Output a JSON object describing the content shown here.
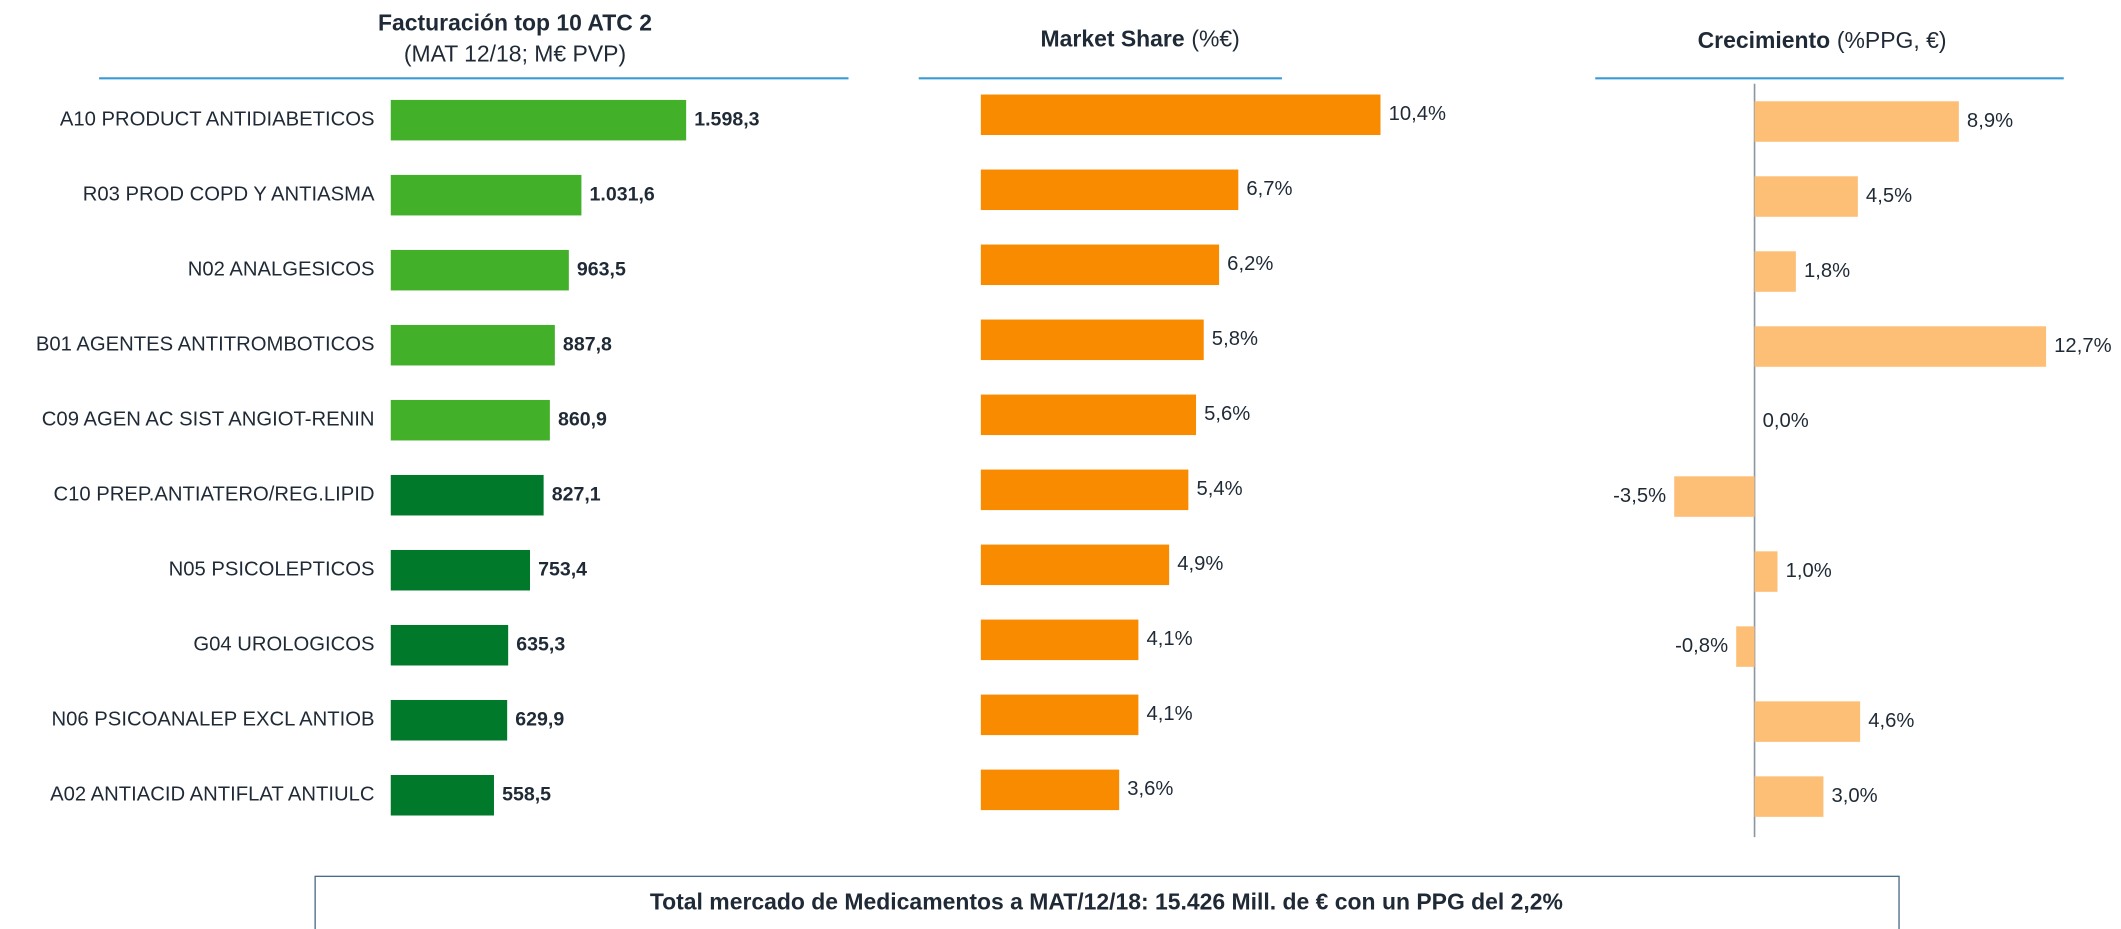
{
  "chart_data": [
    {
      "type": "bar",
      "title": "Facturación top 10 ATC 2",
      "subtitle": "(MAT 12/18; M€ PVP)",
      "categories": [
        "A10 PRODUCT ANTIDIABETICOS",
        "R03 PROD COPD Y ANTIASMA",
        "N02 ANALGESICOS",
        "B01 AGENTES ANTITROMBOTICOS",
        "C09 AGEN AC SIST ANGIOT-RENIN",
        "C10 PREP.ANTIATERO/REG.LIPID",
        "N05 PSICOLEPTICOS",
        "G04 UROLOGICOS",
        "N06 PSICOANALEP EXCL ANTIOB",
        "A02 ANTIACID ANTIFLAT ANTIULC"
      ],
      "values": [
        1598.3,
        1031.6,
        963.5,
        887.8,
        860.9,
        827.1,
        753.4,
        635.3,
        629.9,
        558.5
      ],
      "value_labels": [
        "1.598,3",
        "1.031,6",
        "963,5",
        "887,8",
        "860,9",
        "827,1",
        "753,4",
        "635,3",
        "629,9",
        "558,5"
      ],
      "colors": [
        "#43b02a",
        "#43b02a",
        "#43b02a",
        "#43b02a",
        "#43b02a",
        "#00792a",
        "#00792a",
        "#00792a",
        "#00792a",
        "#00792a"
      ]
    },
    {
      "type": "bar",
      "title": "Market Share",
      "subtitle": "(%€)",
      "values": [
        10.4,
        6.7,
        6.2,
        5.8,
        5.6,
        5.4,
        4.9,
        4.1,
        4.1,
        3.6
      ],
      "value_labels": [
        "10,4%",
        "6,7%",
        "6,2%",
        "5,8%",
        "5,6%",
        "5,4%",
        "4,9%",
        "4,1%",
        "4,1%",
        "3,6%"
      ],
      "color": "#f98b00"
    },
    {
      "type": "bar",
      "title": "Crecimiento",
      "subtitle": "(%PPG, €)",
      "values": [
        8.9,
        4.5,
        1.8,
        12.7,
        0.0,
        -3.5,
        1.0,
        -0.8,
        4.6,
        3.0
      ],
      "value_labels": [
        "8,9%",
        "4,5%",
        "1,8%",
        "12,7%",
        "0,0%",
        "-3,5%",
        "1,0%",
        "-0,8%",
        "4,6%",
        "3,0%"
      ],
      "color": "#fdbf76"
    }
  ],
  "footer": "Total mercado de Medicamentos a MAT/12/18: 15.426 Mill. de € con un PPG del 2,2%"
}
